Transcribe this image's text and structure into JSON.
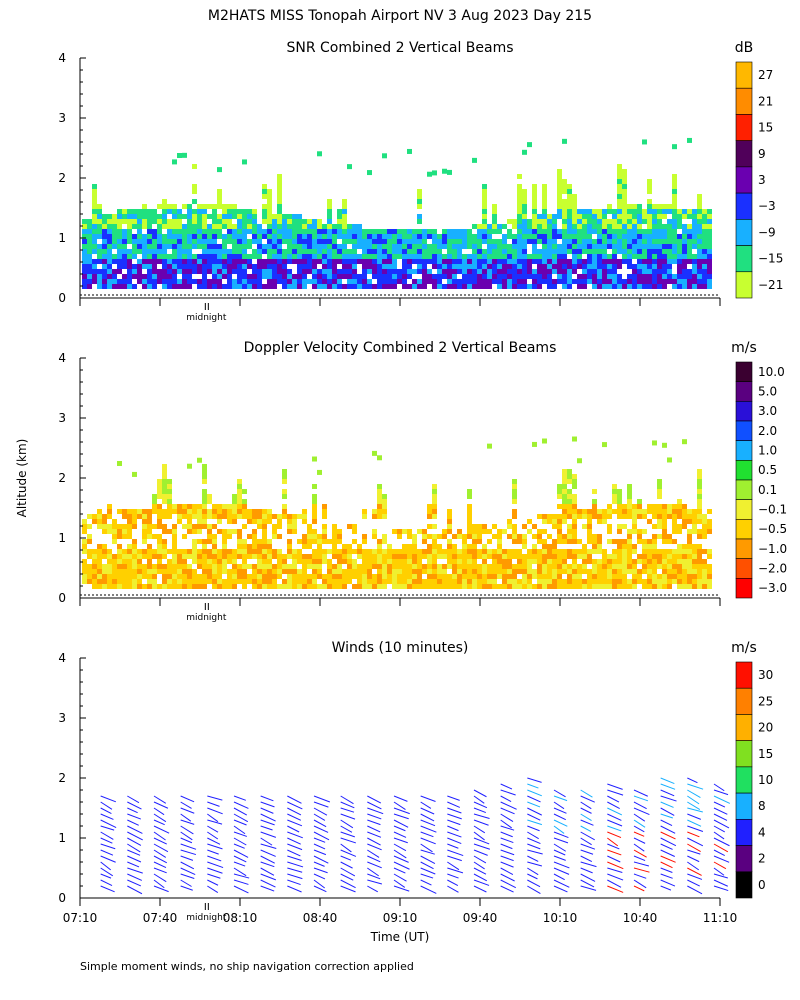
{
  "header": {
    "title": "M2HATS MISS Tonopah Airport NV   3 Aug 2023 Day 215"
  },
  "axis": {
    "ylabel": "Altitude (km)",
    "xlabel": "Time (UT)",
    "yticks": [
      "0",
      "1",
      "2",
      "3",
      "4"
    ],
    "xticks": [
      "07:10",
      "07:40",
      "08:10",
      "08:40",
      "09:10",
      "09:40",
      "10:10",
      "10:40",
      "11:10"
    ],
    "midnight_label": "midnight"
  },
  "footnote": "Simple moment winds, no ship navigation correction applied",
  "chart_data": [
    {
      "type": "heatmap",
      "title": "SNR Combined 2 Vertical Beams",
      "unit": "dB",
      "ylim": [
        0,
        4
      ],
      "x_range": [
        "07:10",
        "11:10"
      ],
      "colorbar_labels": [
        "27",
        "21",
        "15",
        "9",
        "3",
        "−3",
        "−9",
        "−15",
        "−21"
      ],
      "colorbar_colors": [
        "#ffb800",
        "#ff8c00",
        "#ff2000",
        "#50005a",
        "#6a00b0",
        "#1a30ff",
        "#18b0ff",
        "#20e080",
        "#c8ff30"
      ]
    },
    {
      "type": "heatmap",
      "title": "Doppler Velocity Combined 2 Vertical Beams",
      "unit": "m/s",
      "ylim": [
        0,
        4
      ],
      "x_range": [
        "07:10",
        "11:10"
      ],
      "colorbar_labels": [
        "10.0",
        "5.0",
        "3.0",
        "2.0",
        "1.0",
        "0.5",
        "0.1",
        "−0.1",
        "−0.5",
        "−1.0",
        "−2.0",
        "−3.0"
      ],
      "colorbar_colors": [
        "#3a0030",
        "#5a0080",
        "#2a10d8",
        "#1050ff",
        "#18b0ff",
        "#20e030",
        "#a0f030",
        "#f0f030",
        "#ffd000",
        "#ff9a00",
        "#ff5000",
        "#ff0000"
      ]
    },
    {
      "type": "scatter",
      "title": "Winds (10 minutes)",
      "unit": "m/s",
      "ylim": [
        0,
        4
      ],
      "x_range": [
        "07:10",
        "11:10"
      ],
      "colorbar_labels": [
        "30",
        "25",
        "20",
        "15",
        "10",
        "8",
        "4",
        "2",
        "0"
      ],
      "colorbar_colors": [
        "#ff1000",
        "#ff8000",
        "#ffb000",
        "#80e020",
        "#20e060",
        "#18b0ff",
        "#2020ff",
        "#5a0080",
        "#000000"
      ],
      "profile_times": [
        "07:20",
        "07:30",
        "07:40",
        "07:50",
        "08:00",
        "08:10",
        "08:20",
        "08:30",
        "08:40",
        "08:50",
        "09:00",
        "09:10",
        "09:20",
        "09:30",
        "09:40",
        "09:50",
        "10:00",
        "10:10",
        "10:20",
        "10:30",
        "10:40",
        "10:50",
        "11:00",
        "11:10"
      ]
    }
  ]
}
